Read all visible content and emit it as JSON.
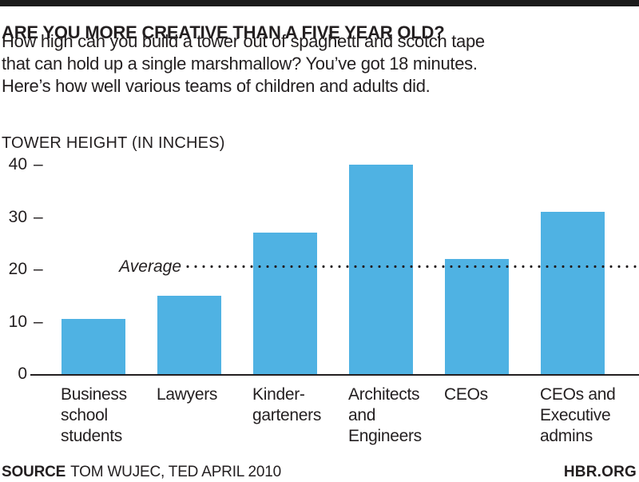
{
  "page": {
    "header": {
      "title": "ARE YOU MORE CREATIVE THAN A FIVE YEAR OLD?",
      "subtitle_lines": [
        "How high can you build a tower out of spaghetti and scotch tape",
        "that can hold up a single marshmallow? You’ve got 18 minutes.",
        "Here’s how well various teams of children and adults did."
      ]
    },
    "footer": {
      "source_label": "SOURCE",
      "source_text": "TOM WUJEC, TED APRIL 2010",
      "site": "HBR.ORG"
    }
  },
  "chart_data": {
    "type": "bar",
    "title": "ARE YOU MORE CREATIVE THAN A FIVE YEAR OLD?",
    "subtitle": "How high can you build a tower out of spaghetti and scotch tape that can hold up a single marshmallow? You’ve got 18 minutes. Here’s how well various teams of children and adults did.",
    "ylabel": "TOWER HEIGHT (IN INCHES)",
    "xlabel": "",
    "categories": [
      "Business school students",
      "Lawyers",
      "Kindergarteners",
      "Architects and Engineers",
      "CEOs",
      "CEOs and Executive admins"
    ],
    "category_lines": [
      [
        "Business",
        "school",
        "students"
      ],
      [
        "Lawyers"
      ],
      [
        "Kinder-",
        "garteners"
      ],
      [
        "Architects",
        "and",
        "Engineers"
      ],
      [
        "CEOs"
      ],
      [
        "CEOs and",
        "Executive",
        "admins"
      ]
    ],
    "values": [
      10.5,
      15,
      27,
      40,
      22,
      31
    ],
    "yticks": [
      40,
      30,
      20,
      10,
      0
    ],
    "ylim": [
      0,
      40
    ],
    "average": {
      "label": "Average",
      "value": 20.5
    },
    "grid": false,
    "legend": null,
    "bar_color": "#4fb2e3",
    "line_color": "#231f20",
    "text_color": "#231f20"
  }
}
